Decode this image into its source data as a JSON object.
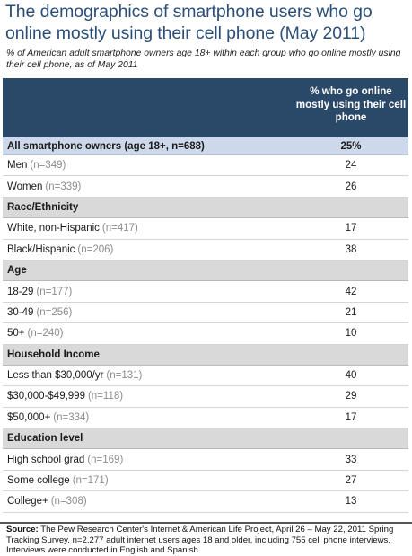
{
  "title": "The demographics of smartphone users who go online mostly using their cell phone (May 2011)",
  "subtitle": "% of American adult smartphone owners age 18+ within each group who go online mostly using their cell phone, as of May 2011",
  "header": {
    "value_column": "% who go online mostly using their cell phone"
  },
  "source": {
    "label": "Source:",
    "text": "The Pew Research Center's Internet & American Life Project, April 26 – May 22, 2011 Spring Tracking Survey. n=2,277 adult internet users ages 18 and older, including 755 cell phone interviews. Interviews were conducted in English and Spanish."
  },
  "colors": {
    "title": "#2a4e78",
    "header_bg": "#2a4868",
    "section_bg": "#d9d9d9",
    "total_bg": "#cdd9ea",
    "sample_size_text": "#8c8c8c"
  },
  "chart_data": {
    "type": "table",
    "columns": [
      "% who go online mostly using their cell phone"
    ],
    "rows": [
      {
        "kind": "total",
        "label": "All smartphone owners (age 18+, n=688)",
        "n": "",
        "value": "25%"
      },
      {
        "kind": "data",
        "label": "Men",
        "n": "(n=349)",
        "value": "24"
      },
      {
        "kind": "data",
        "label": "Women",
        "n": "(n=339)",
        "value": "26"
      },
      {
        "kind": "section",
        "label": "Race/Ethnicity"
      },
      {
        "kind": "data",
        "label": "White, non-Hispanic",
        "n": "(n=417)",
        "value": "17"
      },
      {
        "kind": "data",
        "label": "Black/Hispanic",
        "n": "(n=206)",
        "value": "38"
      },
      {
        "kind": "section",
        "label": "Age"
      },
      {
        "kind": "data",
        "label": "18-29",
        "n": "(n=177)",
        "value": "42"
      },
      {
        "kind": "data",
        "label": "30-49",
        "n": "(n=256)",
        "value": "21"
      },
      {
        "kind": "data",
        "label": "50+",
        "n": "(n=240)",
        "value": "10"
      },
      {
        "kind": "section",
        "label": "Household Income"
      },
      {
        "kind": "data",
        "label": "Less than $30,000/yr",
        "n": "(n=131)",
        "value": "40"
      },
      {
        "kind": "data",
        "label": "$30,000-$49,999",
        "n": "(n=118)",
        "value": "29"
      },
      {
        "kind": "data",
        "label": "$50,000+",
        "n": "(n=334)",
        "value": "17"
      },
      {
        "kind": "section",
        "label": "Education level"
      },
      {
        "kind": "data",
        "label": "High school grad",
        "n": "(n=169)",
        "value": "33"
      },
      {
        "kind": "data",
        "label": "Some college",
        "n": "(n=171)",
        "value": "27"
      },
      {
        "kind": "data",
        "label": "College+",
        "n": "(n=308)",
        "value": "13"
      }
    ]
  }
}
